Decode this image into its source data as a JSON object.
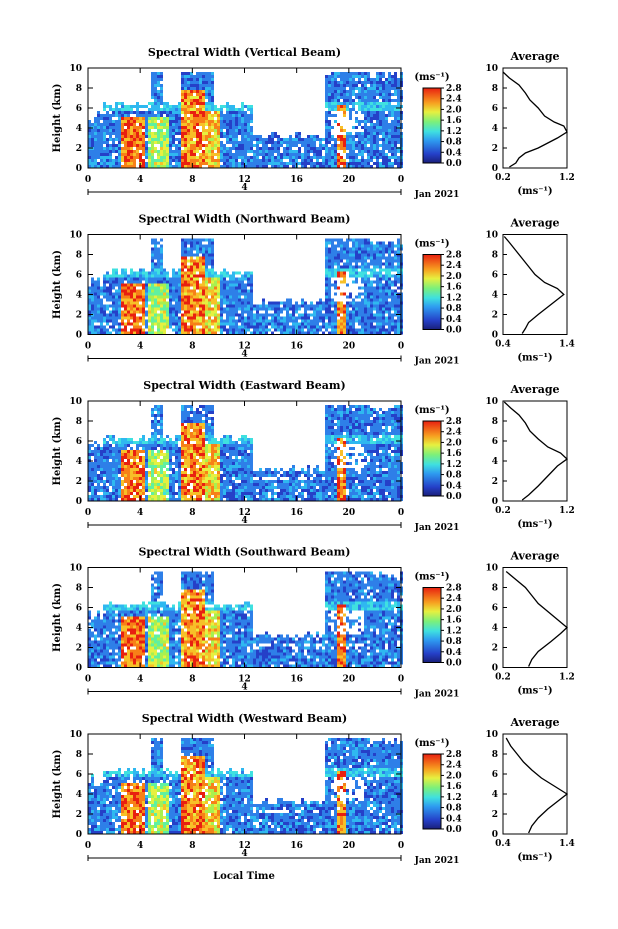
{
  "chart_data": {
    "type": "heatmap",
    "x_label": "Local Time",
    "y_label": "Height (km)",
    "x_ticks": [
      "0",
      "4",
      "8",
      "12",
      "16",
      "20",
      "0"
    ],
    "x_range": [
      0,
      24
    ],
    "y_ticks": [
      "0",
      "2",
      "4",
      "6",
      "8",
      "10"
    ],
    "y_range": [
      0,
      10
    ],
    "date_ticks": [
      "4"
    ],
    "date_label": "Jan 2021",
    "colorbar": {
      "unit_label": "(ms⁻¹)",
      "ticks": [
        "0.0",
        "0.4",
        "0.8",
        "1.2",
        "1.6",
        "2.0",
        "2.4",
        "2.8"
      ],
      "range": [
        0,
        2.8
      ]
    },
    "average_title": "Average",
    "average_unit": "(ms⁻¹)",
    "panels": [
      {
        "title": "Spectral Width (Vertical Beam)",
        "avg_x_ticks": [
          "0.2",
          "1.2"
        ],
        "avg_x_range": [
          0.2,
          1.2
        ],
        "avg_profile": [
          [
            0.3,
            0.1
          ],
          [
            0.4,
            0.5
          ],
          [
            0.45,
            1.0
          ],
          [
            0.55,
            1.5
          ],
          [
            0.75,
            2.0
          ],
          [
            0.9,
            2.5
          ],
          [
            1.05,
            3.0
          ],
          [
            1.2,
            3.6
          ],
          [
            1.15,
            4.2
          ],
          [
            1.0,
            4.6
          ],
          [
            0.85,
            5.2
          ],
          [
            0.75,
            6.0
          ],
          [
            0.62,
            6.8
          ],
          [
            0.55,
            7.5
          ],
          [
            0.45,
            8.3
          ],
          [
            0.3,
            9.0
          ],
          [
            0.2,
            9.6
          ]
        ]
      },
      {
        "title": "Spectral Width (Northward Beam)",
        "avg_x_ticks": [
          "0.4",
          "1.4"
        ],
        "avg_x_range": [
          0.4,
          1.4
        ],
        "avg_profile": [
          [
            0.7,
            0.1
          ],
          [
            0.75,
            0.6
          ],
          [
            0.8,
            1.2
          ],
          [
            0.95,
            2.0
          ],
          [
            1.15,
            3.0
          ],
          [
            1.35,
            4.0
          ],
          [
            1.25,
            4.6
          ],
          [
            1.05,
            5.2
          ],
          [
            0.9,
            6.0
          ],
          [
            0.8,
            6.8
          ],
          [
            0.7,
            7.6
          ],
          [
            0.6,
            8.4
          ],
          [
            0.5,
            9.2
          ],
          [
            0.42,
            9.8
          ]
        ]
      },
      {
        "title": "Spectral Width (Eastward Beam)",
        "avg_x_ticks": [
          "0.2",
          "1.2"
        ],
        "avg_x_range": [
          0.2,
          1.2
        ],
        "avg_profile": [
          [
            0.5,
            0.1
          ],
          [
            0.6,
            0.6
          ],
          [
            0.75,
            1.5
          ],
          [
            0.9,
            2.5
          ],
          [
            1.05,
            3.5
          ],
          [
            1.2,
            4.2
          ],
          [
            1.1,
            4.8
          ],
          [
            0.9,
            5.4
          ],
          [
            0.75,
            6.2
          ],
          [
            0.62,
            7.0
          ],
          [
            0.55,
            7.8
          ],
          [
            0.45,
            8.6
          ],
          [
            0.32,
            9.3
          ],
          [
            0.22,
            9.9
          ]
        ]
      },
      {
        "title": "Spectral Width (Southward Beam)",
        "avg_x_ticks": [
          "0.2",
          "1.2"
        ],
        "avg_x_range": [
          0.2,
          1.2
        ],
        "avg_profile": [
          [
            0.6,
            0.1
          ],
          [
            0.65,
            0.8
          ],
          [
            0.75,
            1.6
          ],
          [
            0.95,
            2.6
          ],
          [
            1.1,
            3.4
          ],
          [
            1.2,
            4.0
          ],
          [
            1.05,
            4.8
          ],
          [
            0.9,
            5.6
          ],
          [
            0.75,
            6.4
          ],
          [
            0.65,
            7.2
          ],
          [
            0.55,
            8.0
          ],
          [
            0.4,
            8.8
          ],
          [
            0.25,
            9.6
          ]
        ]
      },
      {
        "title": "Spectral Width (Westward Beam)",
        "avg_x_ticks": [
          "0.4",
          "1.4"
        ],
        "avg_x_range": [
          0.4,
          1.4
        ],
        "avg_profile": [
          [
            0.8,
            0.1
          ],
          [
            0.85,
            0.8
          ],
          [
            0.95,
            1.6
          ],
          [
            1.1,
            2.5
          ],
          [
            1.3,
            3.5
          ],
          [
            1.4,
            4.0
          ],
          [
            1.2,
            4.8
          ],
          [
            1.0,
            5.6
          ],
          [
            0.85,
            6.4
          ],
          [
            0.72,
            7.2
          ],
          [
            0.62,
            8.0
          ],
          [
            0.52,
            8.8
          ],
          [
            0.45,
            9.6
          ]
        ]
      }
    ]
  }
}
